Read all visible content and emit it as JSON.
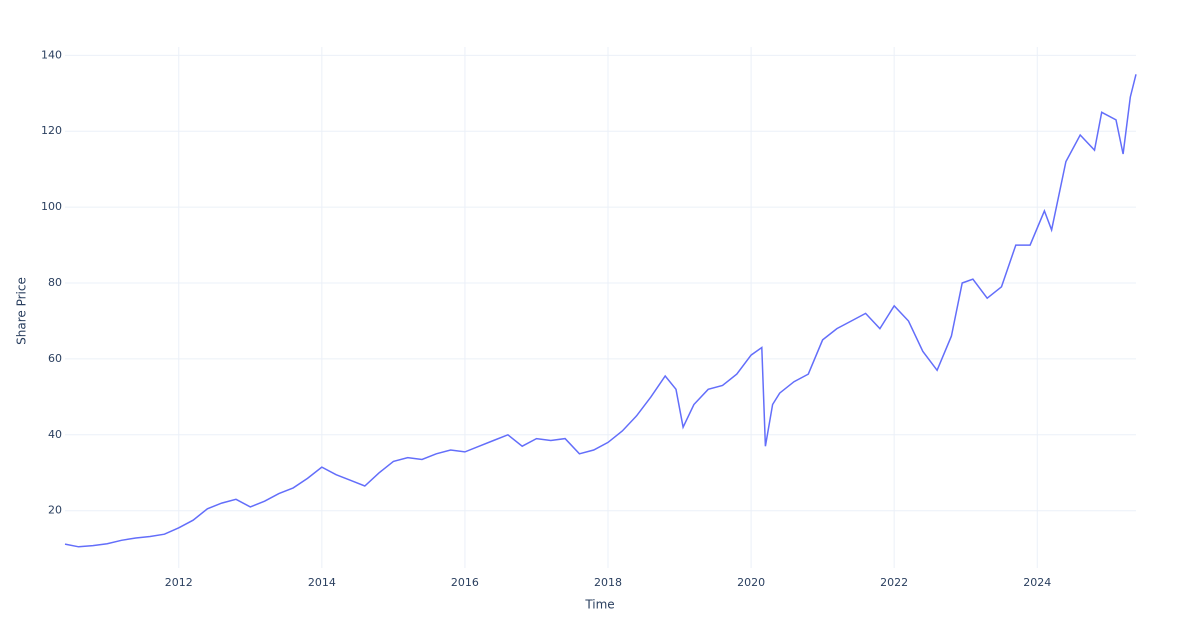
{
  "chart_data": {
    "type": "line",
    "x_label": "Time",
    "y_label": "Share Price",
    "xlim": [
      2010.41,
      2025.38
    ],
    "ylim": [
      4.9,
      142.2
    ],
    "xticks": [
      2012,
      2014,
      2016,
      2018,
      2020,
      2022,
      2024
    ],
    "yticks": [
      20,
      40,
      60,
      80,
      100,
      120,
      140
    ],
    "grid": true,
    "series": [
      {
        "color": "#636efa",
        "x": [
          2010.41,
          2010.6,
          2010.8,
          2011.0,
          2011.2,
          2011.4,
          2011.6,
          2011.8,
          2012.0,
          2012.2,
          2012.4,
          2012.6,
          2012.8,
          2013.0,
          2013.2,
          2013.4,
          2013.6,
          2013.8,
          2014.0,
          2014.2,
          2014.4,
          2014.6,
          2014.8,
          2015.0,
          2015.2,
          2015.4,
          2015.6,
          2015.8,
          2016.0,
          2016.2,
          2016.4,
          2016.6,
          2016.8,
          2017.0,
          2017.2,
          2017.4,
          2017.6,
          2017.8,
          2018.0,
          2018.2,
          2018.4,
          2018.6,
          2018.8,
          2018.95,
          2019.05,
          2019.2,
          2019.4,
          2019.6,
          2019.8,
          2020.0,
          2020.15,
          2020.2,
          2020.3,
          2020.4,
          2020.6,
          2020.8,
          2021.0,
          2021.2,
          2021.4,
          2021.6,
          2021.8,
          2022.0,
          2022.2,
          2022.4,
          2022.6,
          2022.8,
          2022.95,
          2023.1,
          2023.3,
          2023.5,
          2023.7,
          2023.9,
          2024.1,
          2024.2,
          2024.4,
          2024.6,
          2024.8,
          2024.9,
          2025.1,
          2025.2,
          2025.3,
          2025.38
        ],
        "values": [
          11.2,
          10.5,
          10.8,
          11.3,
          12.2,
          12.8,
          13.2,
          13.8,
          15.5,
          17.5,
          20.5,
          22,
          23,
          21,
          22.5,
          24.5,
          26,
          28.5,
          31.5,
          29.5,
          28,
          26.5,
          30,
          33,
          34,
          33.5,
          35,
          36,
          35.5,
          37,
          38.5,
          40,
          37,
          39,
          38.5,
          39,
          35,
          36,
          38,
          41,
          45,
          50,
          55.5,
          52,
          42,
          48,
          52,
          53,
          56,
          61,
          63,
          37,
          48,
          51,
          54,
          56,
          65,
          68,
          70,
          72,
          68,
          74,
          70,
          62,
          57,
          66,
          80,
          81,
          76,
          79,
          90,
          90,
          99,
          94,
          112,
          119,
          115,
          125,
          123,
          114,
          129,
          135
        ]
      }
    ]
  }
}
